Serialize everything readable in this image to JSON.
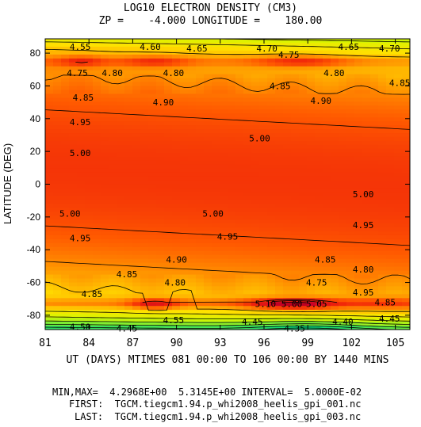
{
  "header": {
    "title": "LOG10 ELECTRON DENSITY (CM3)",
    "subtitle": "ZP =    -4.000 LONGITUDE =    180.00"
  },
  "footer": {
    "minmax": "MIN,MAX=  4.2968E+00  5.3145E+00 INTERVAL=  5.0000E-02",
    "first": "FIRST:  TGCM.tiegcm1.94.p_whi2008_heelis_gpi_001.nc",
    "last": "LAST:  TGCM.tiegcm1.94.p_whi2008_heelis_gpi_003.nc"
  },
  "chart_data": {
    "type": "heatmap",
    "title": "LOG10 ELECTRON DENSITY (CM3)",
    "subtitle": "ZP =    -4.000 LONGITUDE =    180.00",
    "xlabel": "UT (DAYS) MTIMES 081 00:00 TO 106 00:00 BY 1440 MINS",
    "ylabel": "LATITUDE (DEG)",
    "xlim": [
      81,
      106
    ],
    "ylim": [
      -88.75,
      88.75
    ],
    "xticks": [
      81,
      84,
      87,
      90,
      93,
      96,
      99,
      102,
      105
    ],
    "yticks": [
      -80,
      -60,
      -40,
      -20,
      0,
      20,
      40,
      60,
      80
    ],
    "min": 4.2968,
    "max": 5.3145,
    "interval": 0.05,
    "grid": false,
    "contour_labels": [
      {
        "x": 83.4,
        "y": 84,
        "value": "4.55"
      },
      {
        "x": 88.2,
        "y": 84,
        "value": "4.60"
      },
      {
        "x": 91.4,
        "y": 83,
        "value": "4.65"
      },
      {
        "x": 96.2,
        "y": 83,
        "value": "4.70"
      },
      {
        "x": 101.8,
        "y": 84,
        "value": "4.65"
      },
      {
        "x": 104.6,
        "y": 83,
        "value": "4.70"
      },
      {
        "x": 97.7,
        "y": 79,
        "value": "4.75"
      },
      {
        "x": 83.2,
        "y": 68,
        "value": "4.75"
      },
      {
        "x": 85.6,
        "y": 68,
        "value": "4.80"
      },
      {
        "x": 89.8,
        "y": 68,
        "value": "4.80"
      },
      {
        "x": 100.8,
        "y": 68,
        "value": "4.80"
      },
      {
        "x": 97.1,
        "y": 60,
        "value": "4.85"
      },
      {
        "x": 105.3,
        "y": 62,
        "value": "4.85"
      },
      {
        "x": 83.6,
        "y": 53,
        "value": "4.85"
      },
      {
        "x": 89.1,
        "y": 50,
        "value": "4.90"
      },
      {
        "x": 99.9,
        "y": 51,
        "value": "4.90"
      },
      {
        "x": 83.4,
        "y": 38,
        "value": "4.95"
      },
      {
        "x": 95.7,
        "y": 28,
        "value": "5.00"
      },
      {
        "x": 83.4,
        "y": 19,
        "value": "5.00"
      },
      {
        "x": 102.8,
        "y": -6,
        "value": "5.00"
      },
      {
        "x": 82.7,
        "y": -18,
        "value": "5.00"
      },
      {
        "x": 92.5,
        "y": -18,
        "value": "5.00"
      },
      {
        "x": 102.8,
        "y": -25,
        "value": "4.95"
      },
      {
        "x": 83.4,
        "y": -33,
        "value": "4.95"
      },
      {
        "x": 93.5,
        "y": -32,
        "value": "4.95"
      },
      {
        "x": 90.0,
        "y": -46,
        "value": "4.90"
      },
      {
        "x": 100.2,
        "y": -46,
        "value": "4.85"
      },
      {
        "x": 102.8,
        "y": -52,
        "value": "4.80"
      },
      {
        "x": 86.6,
        "y": -55,
        "value": "4.85"
      },
      {
        "x": 89.9,
        "y": -60,
        "value": "4.80"
      },
      {
        "x": 99.6,
        "y": -60,
        "value": "4.75"
      },
      {
        "x": 102.8,
        "y": -66,
        "value": "4.95"
      },
      {
        "x": 84.2,
        "y": -67,
        "value": "4.85"
      },
      {
        "x": 96.1,
        "y": -73,
        "value": "5.10"
      },
      {
        "x": 97.9,
        "y": -73,
        "value": "5.00"
      },
      {
        "x": 99.6,
        "y": -73,
        "value": "5.05"
      },
      {
        "x": 104.3,
        "y": -72,
        "value": "4.85"
      },
      {
        "x": 89.8,
        "y": -83,
        "value": "4.55"
      },
      {
        "x": 95.2,
        "y": -84,
        "value": "4.45"
      },
      {
        "x": 104.6,
        "y": -82,
        "value": "4.45"
      },
      {
        "x": 83.4,
        "y": -87,
        "value": "4.50"
      },
      {
        "x": 86.6,
        "y": -88,
        "value": "4.45"
      },
      {
        "x": 98.1,
        "y": -88,
        "value": "4.35"
      },
      {
        "x": 101.4,
        "y": -84,
        "value": "4.40"
      }
    ]
  }
}
